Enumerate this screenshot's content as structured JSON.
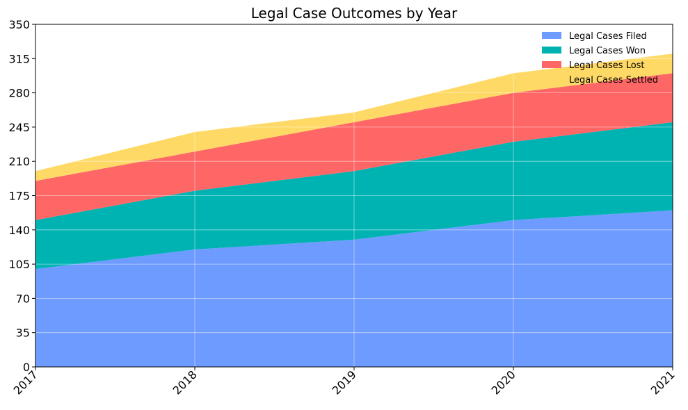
{
  "chart_data": {
    "type": "area",
    "stacked": true,
    "title": "Legal Case Outcomes by Year",
    "xlabel": "",
    "ylabel": "",
    "x": [
      "2017",
      "2018",
      "2019",
      "2020",
      "2021"
    ],
    "series": [
      {
        "name": "Legal Cases Filed",
        "values": [
          100,
          120,
          130,
          150,
          160
        ],
        "color": "#6e9bff"
      },
      {
        "name": "Legal Cases Won",
        "values": [
          50,
          60,
          70,
          80,
          90
        ],
        "color": "#00b3b3"
      },
      {
        "name": "Legal Cases Lost",
        "values": [
          40,
          40,
          50,
          50,
          50
        ],
        "color": "#ff6666"
      },
      {
        "name": "Legal Cases Settled",
        "values": [
          10,
          20,
          10,
          20,
          20
        ],
        "color": "#ffd966"
      }
    ],
    "ylim": [
      0,
      350
    ],
    "yticks": [
      "0",
      "35",
      "70",
      "105",
      "140",
      "175",
      "210",
      "245",
      "280",
      "315",
      "350"
    ],
    "grid": true,
    "legend_position": "top-right"
  }
}
